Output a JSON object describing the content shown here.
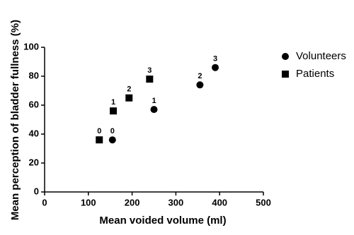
{
  "chart_data": {
    "type": "scatter",
    "xlabel": "Mean voided volume (ml)",
    "ylabel": "Mean perception of bladder fullness (%)",
    "xlim": [
      0,
      500
    ],
    "xticks": [
      0,
      100,
      200,
      300,
      400,
      500
    ],
    "ylim": [
      0,
      100
    ],
    "yticks": [
      0,
      20,
      40,
      60,
      80,
      100
    ],
    "grid": false,
    "legend": "right",
    "series": [
      {
        "name": "Volunteers",
        "marker": "circle",
        "color": "#000000",
        "x": [
          155,
          250,
          355,
          390
        ],
        "values": [
          36,
          57,
          74,
          86
        ],
        "point_labels": [
          "0",
          "1",
          "2",
          "3"
        ]
      },
      {
        "name": "Patients",
        "marker": "square",
        "color": "#000000",
        "x": [
          125,
          157,
          193,
          240
        ],
        "values": [
          36,
          56,
          65,
          78
        ],
        "point_labels": [
          "0",
          "1",
          "2",
          "3"
        ]
      }
    ]
  }
}
